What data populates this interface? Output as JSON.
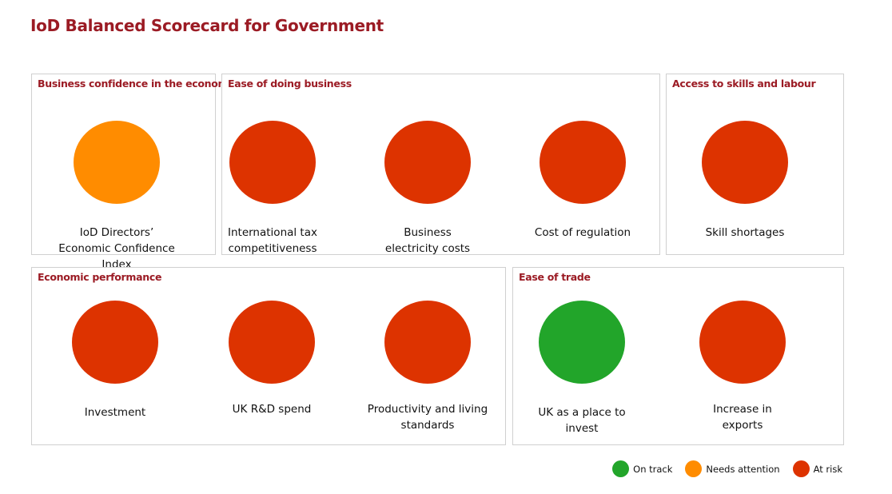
{
  "title": "IoD Balanced Scorecard for Government",
  "colors": {
    "on_track": "#22a52a",
    "needs_attention": "#ff8c00",
    "at_risk": "#dd3300"
  },
  "panels": [
    {
      "title": "Business confidence in the economy",
      "indicators": [
        {
          "label": "IoD Directors’ Economic Confidence Index",
          "status": "needs_attention"
        }
      ]
    },
    {
      "title": "Ease of doing business",
      "indicators": [
        {
          "label": "International tax competitiveness",
          "status": "at_risk"
        },
        {
          "label": "Business electricity costs",
          "status": "at_risk"
        },
        {
          "label": "Cost of regulation",
          "status": "at_risk"
        }
      ]
    },
    {
      "title": "Access to skills and labour",
      "indicators": [
        {
          "label": "Skill shortages",
          "status": "at_risk"
        }
      ]
    },
    {
      "title": "Economic performance",
      "indicators": [
        {
          "label": "Investment",
          "status": "at_risk"
        },
        {
          "label": "UK R&D spend",
          "status": "at_risk"
        },
        {
          "label": "Productivity and living standards",
          "status": "at_risk"
        }
      ]
    },
    {
      "title": "Ease of trade",
      "indicators": [
        {
          "label": "UK as a place to invest",
          "status": "on_track"
        },
        {
          "label": "Increase in exports",
          "status": "at_risk"
        }
      ]
    }
  ],
  "legend": [
    {
      "label": "On track",
      "status": "on_track"
    },
    {
      "label": "Needs attention",
      "status": "needs_attention"
    },
    {
      "label": "At risk",
      "status": "at_risk"
    }
  ]
}
